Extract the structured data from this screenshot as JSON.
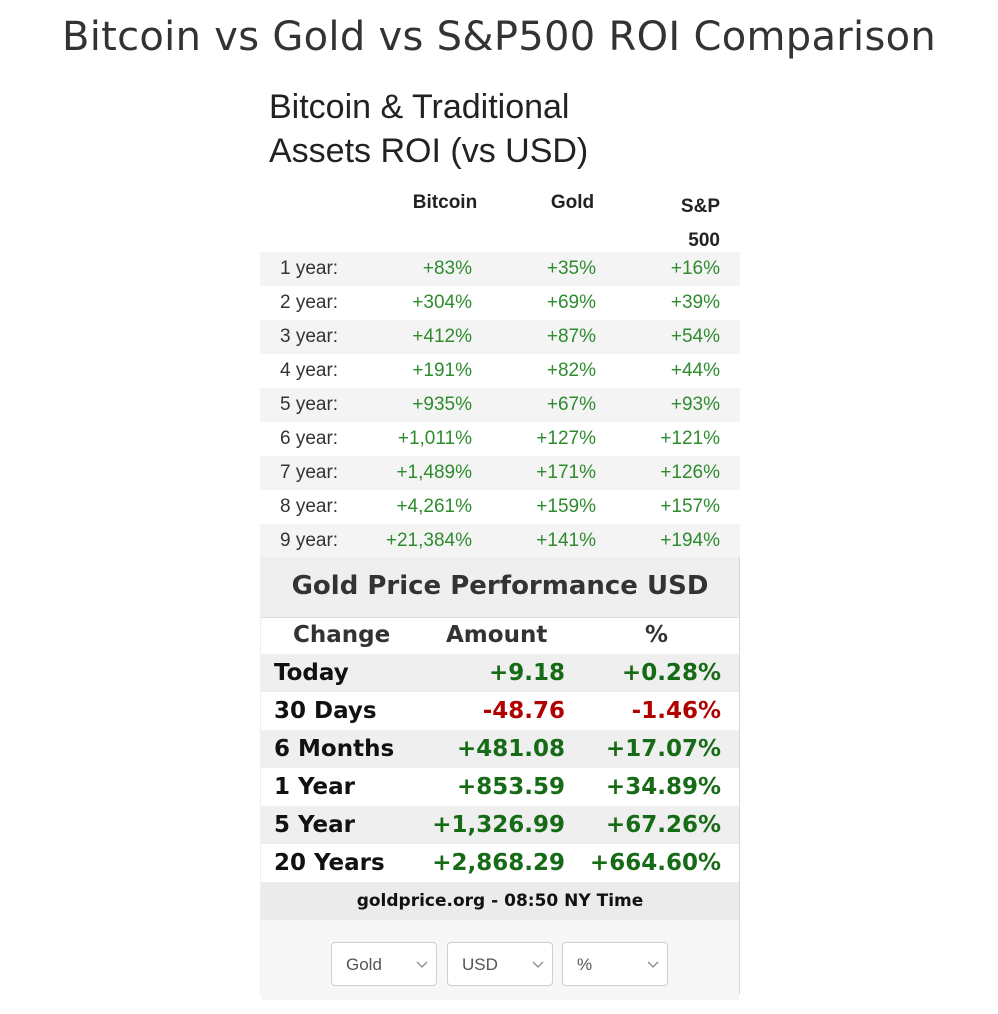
{
  "page_title": "Bitcoin vs Gold vs S&P500 ROI Comparison",
  "roi_table": {
    "heading_line1": "Bitcoin & Traditional",
    "heading_line2": "Assets ROI (vs USD)",
    "columns": {
      "bitcoin": "Bitcoin",
      "gold": "Gold",
      "sp_line1": "S&P",
      "sp_line2": "500"
    },
    "rows": [
      {
        "label": "1 year:",
        "bitcoin": "+83%",
        "gold": "+35%",
        "sp": "+16%"
      },
      {
        "label": "2 year:",
        "bitcoin": "+304%",
        "gold": "+69%",
        "sp": "+39%"
      },
      {
        "label": "3 year:",
        "bitcoin": "+412%",
        "gold": "+87%",
        "sp": "+54%"
      },
      {
        "label": "4 year:",
        "bitcoin": "+191%",
        "gold": "+82%",
        "sp": "+44%"
      },
      {
        "label": "5 year:",
        "bitcoin": "+935%",
        "gold": "+67%",
        "sp": "+93%"
      },
      {
        "label": "6 year:",
        "bitcoin": "+1,011%",
        "gold": "+127%",
        "sp": "+121%"
      },
      {
        "label": "7 year:",
        "bitcoin": "+1,489%",
        "gold": "+171%",
        "sp": "+126%"
      },
      {
        "label": "8 year:",
        "bitcoin": "+4,261%",
        "gold": "+159%",
        "sp": "+157%"
      },
      {
        "label": "9 year:",
        "bitcoin": "+21,384%",
        "gold": "+141%",
        "sp": "+194%"
      }
    ],
    "value_color": "#2e8b2e"
  },
  "gold_widget": {
    "title": "Gold Price Performance USD",
    "columns": {
      "change": "Change",
      "amount": "Amount",
      "percent": "%"
    },
    "rows": [
      {
        "label": "Today",
        "amount": "+9.18",
        "percent": "+0.28%",
        "trend": "pos"
      },
      {
        "label": "30 Days",
        "amount": "-48.76",
        "percent": "-1.46%",
        "trend": "neg"
      },
      {
        "label": "6 Months",
        "amount": "+481.08",
        "percent": "+17.07%",
        "trend": "pos"
      },
      {
        "label": "1 Year",
        "amount": "+853.59",
        "percent": "+34.89%",
        "trend": "pos"
      },
      {
        "label": "5 Year",
        "amount": "+1,326.99",
        "percent": "+67.26%",
        "trend": "pos"
      },
      {
        "label": "20 Years",
        "amount": "+2,868.29",
        "percent": "+664.60%",
        "trend": "pos"
      }
    ],
    "source": "goldprice.org - 08:50 NY Time",
    "selects": {
      "metal": "Gold",
      "currency": "USD",
      "unit": "%"
    },
    "positive_color": "#166b16",
    "negative_color": "#b00000"
  }
}
